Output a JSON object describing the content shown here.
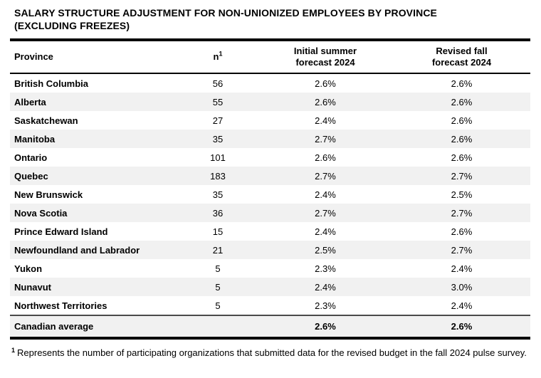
{
  "title": {
    "line1": "SALARY STRUCTURE ADJUSTMENT FOR NON-UNIONIZED EMPLOYEES BY PROVINCE",
    "line2": "(EXCLUDING FREEZES)"
  },
  "table": {
    "columns": {
      "province": "Province",
      "n_label": "n",
      "n_sup": "1",
      "initial_line1": "Initial summer",
      "initial_line2": "forecast 2024",
      "revised_line1": "Revised fall",
      "revised_line2": "forecast 2024"
    },
    "rows": [
      {
        "province": "British Columbia",
        "n": "56",
        "initial": "2.6%",
        "revised": "2.6%"
      },
      {
        "province": "Alberta",
        "n": "55",
        "initial": "2.6%",
        "revised": "2.6%"
      },
      {
        "province": "Saskatchewan",
        "n": "27",
        "initial": "2.4%",
        "revised": "2.6%"
      },
      {
        "province": "Manitoba",
        "n": "35",
        "initial": "2.7%",
        "revised": "2.6%"
      },
      {
        "province": "Ontario",
        "n": "101",
        "initial": "2.6%",
        "revised": "2.6%"
      },
      {
        "province": "Quebec",
        "n": "183",
        "initial": "2.7%",
        "revised": "2.7%"
      },
      {
        "province": "New Brunswick",
        "n": "35",
        "initial": "2.4%",
        "revised": "2.5%"
      },
      {
        "province": "Nova Scotia",
        "n": "36",
        "initial": "2.7%",
        "revised": "2.7%"
      },
      {
        "province": "Prince Edward Island",
        "n": "15",
        "initial": "2.4%",
        "revised": "2.6%"
      },
      {
        "province": "Newfoundland and Labrador",
        "n": "21",
        "initial": "2.5%",
        "revised": "2.7%"
      },
      {
        "province": "Yukon",
        "n": "5",
        "initial": "2.3%",
        "revised": "2.4%"
      },
      {
        "province": "Nunavut",
        "n": "5",
        "initial": "2.4%",
        "revised": "3.0%"
      },
      {
        "province": "Northwest Territories",
        "n": "5",
        "initial": "2.3%",
        "revised": "2.4%"
      }
    ],
    "summary": {
      "label": "Canadian average",
      "n": "",
      "initial": "2.6%",
      "revised": "2.6%"
    }
  },
  "footnote": {
    "sup": "1",
    "text": "Represents the number of participating organizations that submitted data for the revised budget in the fall 2024 pulse survey."
  },
  "colors": {
    "row_stripe": "#f1f1f1",
    "table_border": "#000000",
    "summary_divider": "#4a4a4a",
    "text": "#000000",
    "background": "#ffffff"
  }
}
